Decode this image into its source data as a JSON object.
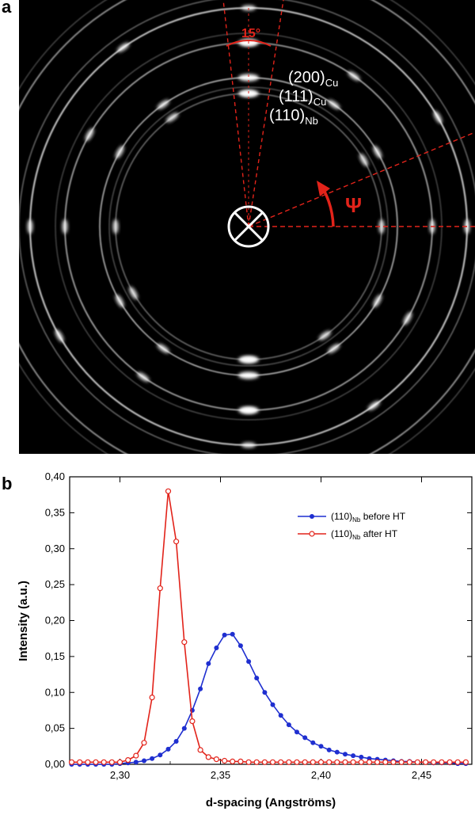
{
  "panel_a": {
    "letter": "a",
    "angle_label": "15°",
    "psi_label": "Ψ",
    "ring_labels": [
      {
        "main": "(200)",
        "sub": "Cu"
      },
      {
        "main": "(111)",
        "sub": "Cu"
      },
      {
        "main": "(110)",
        "sub": "Nb"
      }
    ],
    "colors": {
      "background": "#000000",
      "ring": "#ffffff",
      "annotation": "#e2231a"
    }
  },
  "panel_b": {
    "letter": "b"
  },
  "chart_data": {
    "type": "line",
    "title": "",
    "xlabel": "d-spacing (Angströms)",
    "ylabel": "Intensity (a.u.)",
    "xlim": [
      2.275,
      2.475
    ],
    "ylim": [
      0,
      0.4
    ],
    "x_ticks": [
      2.3,
      2.35,
      2.4,
      2.45
    ],
    "x_tick_labels": [
      "2,30",
      "2,35",
      "2,40",
      "2,45"
    ],
    "y_ticks": [
      0,
      0.05,
      0.1,
      0.15,
      0.2,
      0.25,
      0.3,
      0.35,
      0.4
    ],
    "y_tick_labels": [
      "0,00",
      "0,05",
      "0,10",
      "0,15",
      "0,20",
      "0,25",
      "0,30",
      "0,35",
      "0,40"
    ],
    "legend_position": "top-right",
    "series": [
      {
        "name": "before HT",
        "legend_main": "(110)",
        "legend_sub": "Nb",
        "legend_rest": " before HT",
        "color": "#1f2fd0",
        "marker": "filled-circle",
        "x": [
          2.276,
          2.28,
          2.284,
          2.288,
          2.292,
          2.296,
          2.3,
          2.304,
          2.308,
          2.312,
          2.316,
          2.32,
          2.324,
          2.328,
          2.332,
          2.336,
          2.34,
          2.344,
          2.348,
          2.352,
          2.356,
          2.36,
          2.364,
          2.368,
          2.372,
          2.376,
          2.38,
          2.384,
          2.388,
          2.392,
          2.396,
          2.4,
          2.404,
          2.408,
          2.412,
          2.416,
          2.42,
          2.424,
          2.428,
          2.432,
          2.436,
          2.44,
          2.444,
          2.448,
          2.452,
          2.456,
          2.46,
          2.464,
          2.468,
          2.472
        ],
        "y": [
          0.0,
          0.0,
          0.0,
          0.0,
          0.0,
          0.0,
          0.001,
          0.002,
          0.003,
          0.005,
          0.008,
          0.013,
          0.021,
          0.032,
          0.05,
          0.075,
          0.105,
          0.14,
          0.162,
          0.18,
          0.181,
          0.165,
          0.143,
          0.12,
          0.1,
          0.083,
          0.068,
          0.055,
          0.045,
          0.037,
          0.03,
          0.025,
          0.02,
          0.017,
          0.014,
          0.012,
          0.01,
          0.008,
          0.007,
          0.006,
          0.005,
          0.004,
          0.004,
          0.003,
          0.003,
          0.002,
          0.002,
          0.002,
          0.001,
          0.001
        ]
      },
      {
        "name": "after HT",
        "legend_main": "(110)",
        "legend_sub": "Nb",
        "legend_rest": " after HT",
        "color": "#e2231a",
        "marker": "open-circle",
        "x": [
          2.276,
          2.28,
          2.284,
          2.288,
          2.292,
          2.296,
          2.3,
          2.304,
          2.308,
          2.312,
          2.316,
          2.32,
          2.324,
          2.328,
          2.332,
          2.336,
          2.34,
          2.344,
          2.348,
          2.352,
          2.356,
          2.36,
          2.364,
          2.368,
          2.372,
          2.376,
          2.38,
          2.384,
          2.388,
          2.392,
          2.396,
          2.4,
          2.404,
          2.408,
          2.412,
          2.416,
          2.42,
          2.424,
          2.428,
          2.432,
          2.436,
          2.44,
          2.444,
          2.448,
          2.452,
          2.456,
          2.46,
          2.464,
          2.468,
          2.472
        ],
        "y": [
          0.003,
          0.003,
          0.003,
          0.003,
          0.003,
          0.003,
          0.003,
          0.006,
          0.012,
          0.03,
          0.093,
          0.245,
          0.38,
          0.31,
          0.17,
          0.06,
          0.02,
          0.01,
          0.007,
          0.005,
          0.004,
          0.004,
          0.003,
          0.003,
          0.003,
          0.003,
          0.003,
          0.003,
          0.003,
          0.003,
          0.003,
          0.003,
          0.003,
          0.003,
          0.003,
          0.003,
          0.003,
          0.003,
          0.003,
          0.003,
          0.003,
          0.003,
          0.003,
          0.003,
          0.003,
          0.003,
          0.003,
          0.003,
          0.003,
          0.003
        ]
      }
    ]
  }
}
